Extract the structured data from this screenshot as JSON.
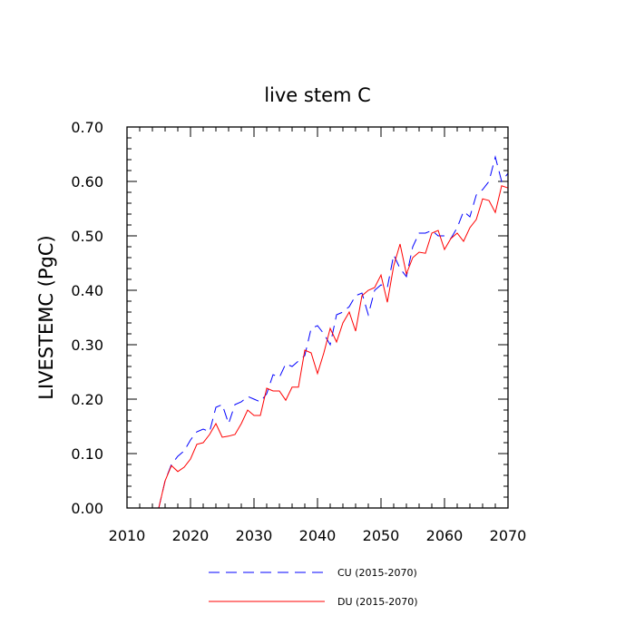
{
  "chart_data": {
    "type": "line",
    "title": "live stem C",
    "xlabel": "",
    "ylabel": "LIVESTEMC  (PgC)",
    "xlim": [
      2010,
      2070
    ],
    "ylim": [
      0.0,
      0.7
    ],
    "x_ticks": [
      "2010",
      "2020",
      "2030",
      "2040",
      "2050",
      "2060",
      "2070"
    ],
    "y_ticks": [
      "0.00",
      "0.10",
      "0.20",
      "0.30",
      "0.40",
      "0.50",
      "0.60",
      "0.70"
    ],
    "grid": false,
    "legend_position": "bottom",
    "x": [
      2015,
      2016,
      2017,
      2018,
      2019,
      2020,
      2021,
      2022,
      2023,
      2024,
      2025,
      2026,
      2027,
      2028,
      2029,
      2030,
      2031,
      2032,
      2033,
      2034,
      2035,
      2036,
      2037,
      2038,
      2039,
      2040,
      2041,
      2042,
      2043,
      2044,
      2045,
      2046,
      2047,
      2048,
      2049,
      2050,
      2051,
      2052,
      2053,
      2054,
      2055,
      2056,
      2057,
      2058,
      2059,
      2060,
      2061,
      2062,
      2063,
      2064,
      2065,
      2066,
      2067,
      2068,
      2069,
      2070
    ],
    "series": [
      {
        "name": "CU (2015-2070)",
        "color": "#0000ff",
        "style": "dashed",
        "values": [
          0.0,
          0.05,
          0.08,
          0.095,
          0.105,
          0.125,
          0.14,
          0.145,
          0.14,
          0.185,
          0.19,
          0.155,
          0.19,
          0.195,
          0.205,
          0.2,
          0.195,
          0.21,
          0.245,
          0.24,
          0.265,
          0.26,
          0.27,
          0.28,
          0.33,
          0.335,
          0.32,
          0.3,
          0.355,
          0.36,
          0.37,
          0.39,
          0.395,
          0.355,
          0.4,
          0.41,
          0.405,
          0.465,
          0.44,
          0.425,
          0.48,
          0.505,
          0.505,
          0.51,
          0.5,
          0.5,
          0.495,
          0.515,
          0.545,
          0.535,
          0.575,
          0.585,
          0.6,
          0.645,
          0.6,
          0.615
        ]
      },
      {
        "name": "DU (2015-2070)",
        "color": "#ff0000",
        "style": "solid",
        "values": [
          0.0,
          0.05,
          0.078,
          0.067,
          0.075,
          0.09,
          0.117,
          0.12,
          0.135,
          0.155,
          0.13,
          0.132,
          0.135,
          0.155,
          0.18,
          0.17,
          0.17,
          0.22,
          0.215,
          0.215,
          0.198,
          0.222,
          0.222,
          0.29,
          0.285,
          0.247,
          0.285,
          0.33,
          0.305,
          0.34,
          0.36,
          0.325,
          0.39,
          0.4,
          0.405,
          0.428,
          0.378,
          0.445,
          0.485,
          0.43,
          0.46,
          0.47,
          0.468,
          0.505,
          0.51,
          0.475,
          0.495,
          0.505,
          0.49,
          0.515,
          0.53,
          0.568,
          0.565,
          0.543,
          0.592,
          0.588
        ]
      }
    ]
  }
}
